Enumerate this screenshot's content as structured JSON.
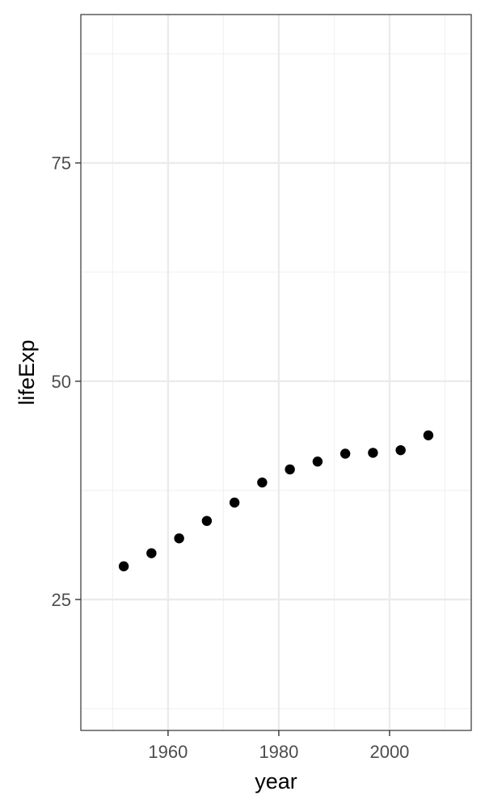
{
  "chart_data": {
    "type": "scatter",
    "title": "",
    "xlabel": "year",
    "ylabel": "lifeExp",
    "xlim": [
      1944.25,
      2014.75
    ],
    "ylim": [
      10.0,
      92.0
    ],
    "xticks": [
      1960,
      1980,
      2000
    ],
    "yticks": [
      25,
      50,
      75
    ],
    "x_tick_labels": [
      "1960",
      "1980",
      "2000"
    ],
    "y_tick_labels": [
      "25",
      "50",
      "75"
    ],
    "x_minor_ticks": [
      1950,
      1970,
      1990,
      2010
    ],
    "y_minor_ticks": [
      12.5,
      37.5,
      62.5,
      87.5
    ],
    "grid": true,
    "legend": "none",
    "series": [
      {
        "x": [
          1952,
          1957,
          1962,
          1967,
          1972,
          1977,
          1982,
          1987,
          1992,
          1997,
          2002,
          2007
        ],
        "y": [
          28.8,
          30.3,
          32.0,
          34.0,
          36.1,
          38.4,
          39.9,
          40.8,
          41.7,
          41.8,
          42.1,
          43.8
        ]
      }
    ],
    "colors": {
      "point": "#000000",
      "grid_major": "#ebebeb",
      "grid_minor": "#f2f2f2",
      "panel_border": "#333333",
      "tick_text": "#4d4d4d",
      "axis_title": "#000000",
      "background": "#ffffff"
    }
  }
}
